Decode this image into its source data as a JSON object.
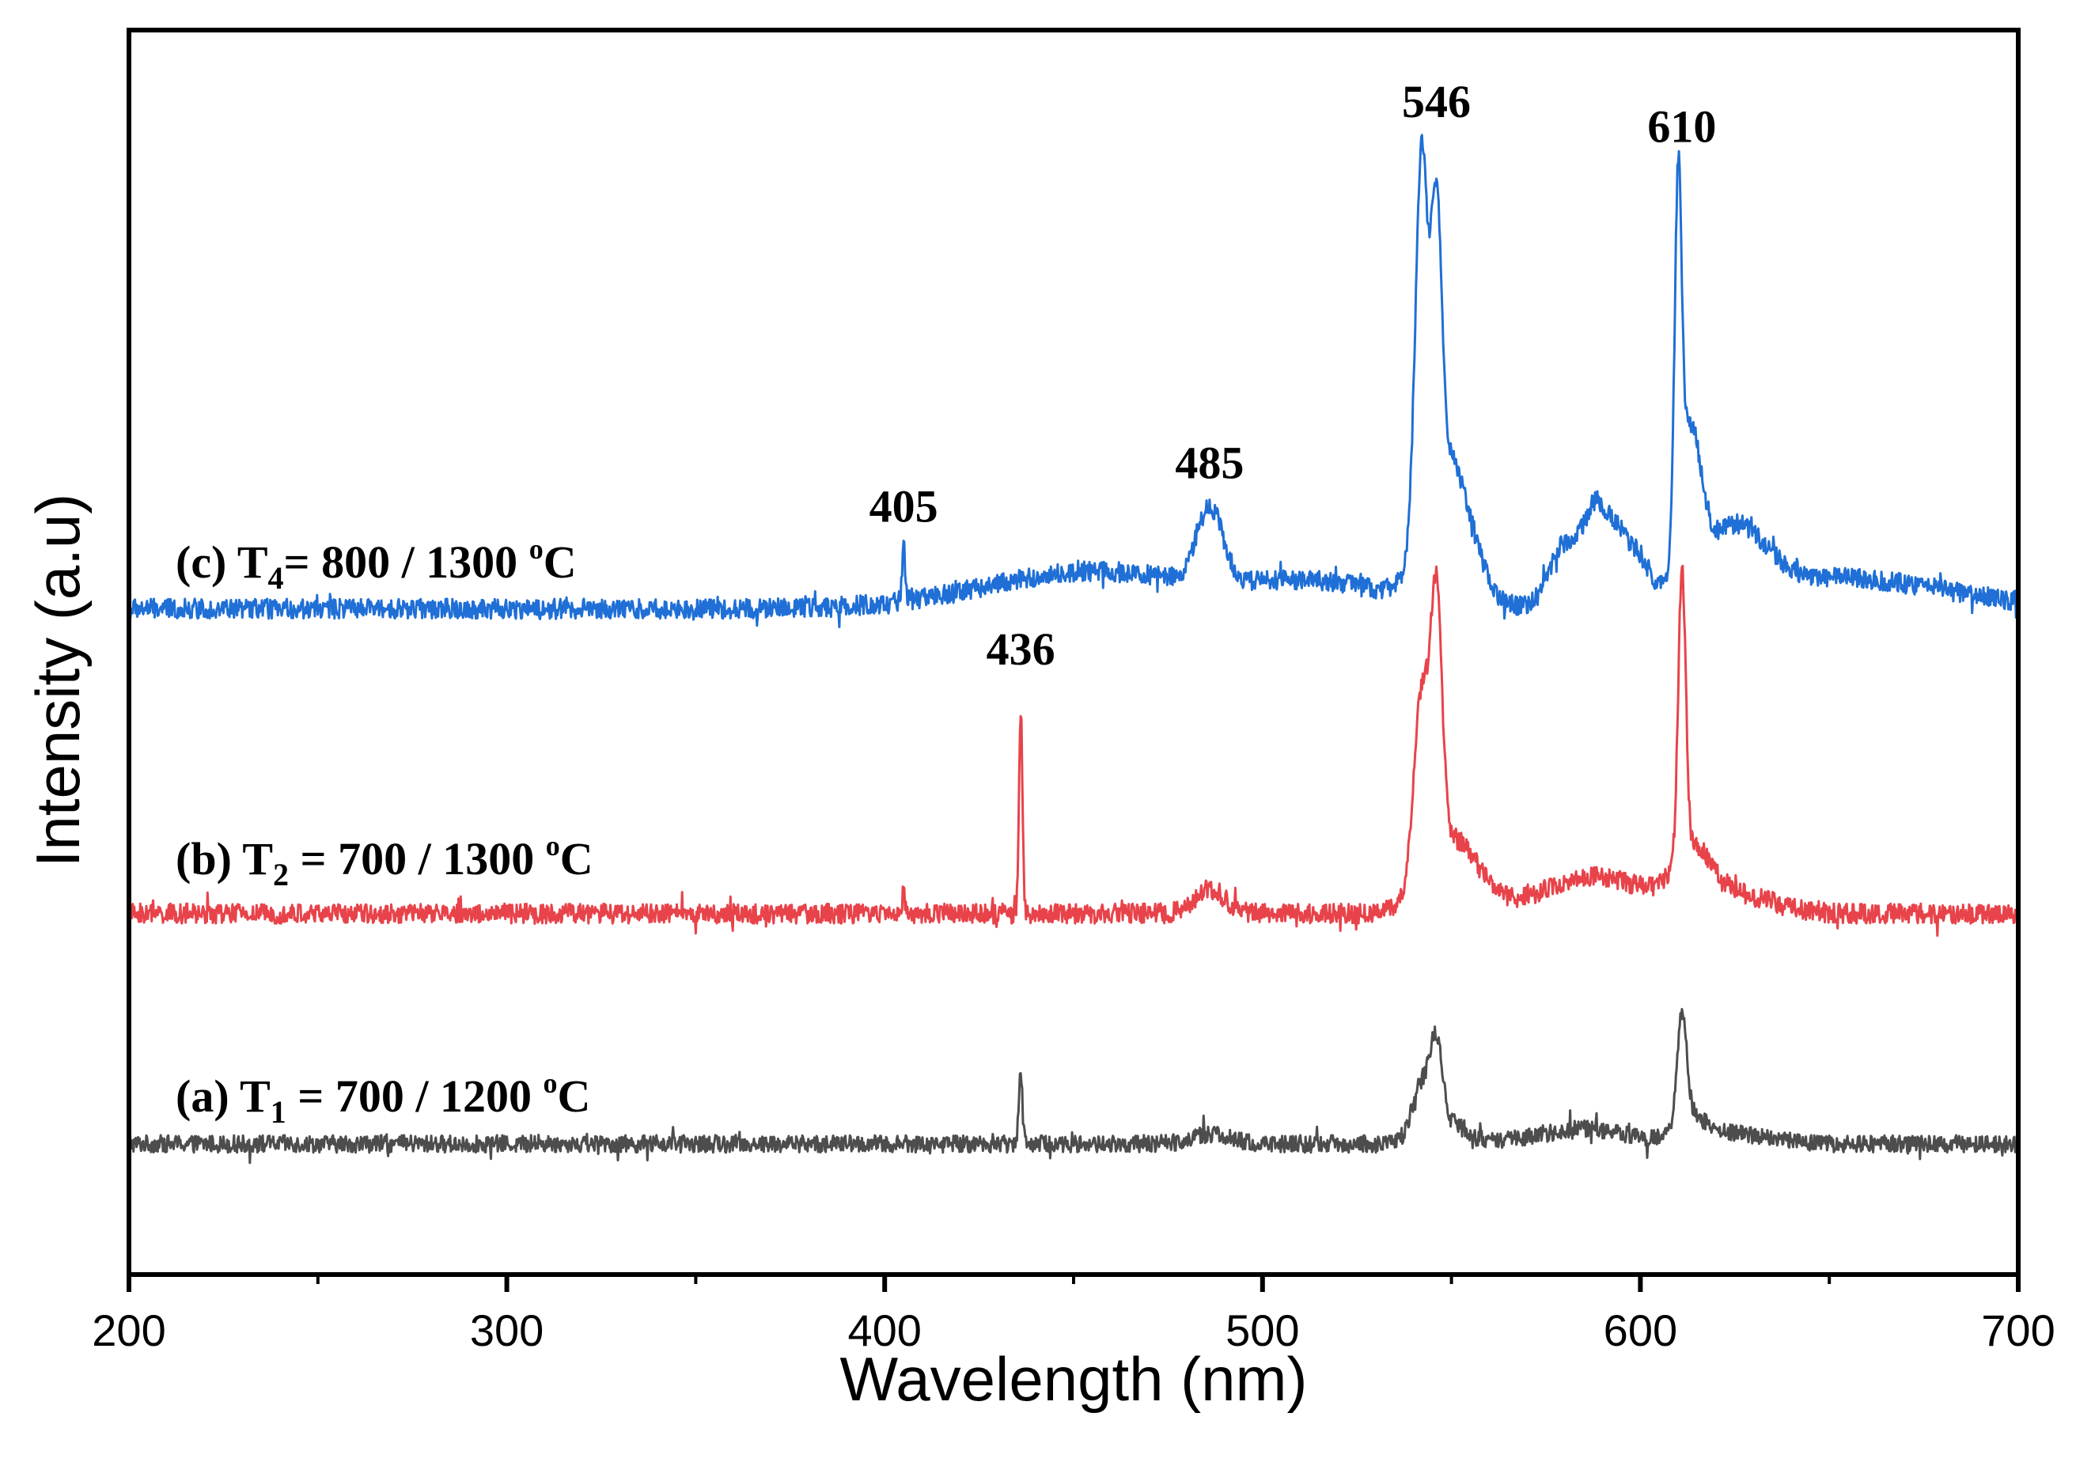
{
  "chart_data": {
    "type": "line",
    "title": "",
    "xlabel": "Wavelength (nm)",
    "ylabel": "Intensity (a.u)",
    "xlim": [
      200,
      700
    ],
    "ylim": [
      0,
      100
    ],
    "x_ticks": [
      200,
      300,
      400,
      500,
      600,
      700
    ],
    "x_tick_labels": [
      "200",
      "300",
      "400",
      "500",
      "600",
      "700"
    ],
    "y_ticks_shown": false,
    "grid": false,
    "colors": {
      "a": "#4d4d4d",
      "b": "#e8434a",
      "c": "#1f6fd6"
    },
    "series": [
      {
        "id": "a",
        "name": "(a) T1 = 700 / 1200 oC",
        "label_parts": {
          "prefix": "(a) T",
          "sub": "1",
          "mid": " = 700 / 1200 ",
          "sup": "o",
          "suffix": "C"
        },
        "baseline": 10.5,
        "noise": 0.7,
        "peaks": [
          {
            "x": 436,
            "height": 6.0,
            "width": 0.5
          },
          {
            "x": 486,
            "height": 0.8,
            "width": 5
          },
          {
            "x": 542,
            "height": 4.0,
            "width": 2.5
          },
          {
            "x": 546,
            "height": 6.0,
            "width": 1.5
          },
          {
            "x": 548,
            "height": 2.0,
            "width": 5
          },
          {
            "x": 585,
            "height": 1.2,
            "width": 12
          },
          {
            "x": 611,
            "height": 8.5,
            "width": 1.2
          },
          {
            "x": 613,
            "height": 2.0,
            "width": 4
          },
          {
            "x": 625,
            "height": 0.8,
            "width": 10
          }
        ]
      },
      {
        "id": "b",
        "name": "(b) T2 = 700 / 1300 oC",
        "label_parts": {
          "prefix": "(b) T",
          "sub": "2",
          "mid": " = 700 / 1300 ",
          "sup": "o",
          "suffix": "C"
        },
        "baseline": 29.0,
        "noise": 0.8,
        "peaks": [
          {
            "x": 405,
            "height": 1.5,
            "width": 0.5
          },
          {
            "x": 436,
            "height": 16.5,
            "width": 0.45
          },
          {
            "x": 486,
            "height": 2.0,
            "width": 4
          },
          {
            "x": 542,
            "height": 14.5,
            "width": 2.0
          },
          {
            "x": 546,
            "height": 20.0,
            "width": 1.5
          },
          {
            "x": 550,
            "height": 6.0,
            "width": 7
          },
          {
            "x": 588,
            "height": 3.0,
            "width": 14
          },
          {
            "x": 611,
            "height": 23.0,
            "width": 1.0
          },
          {
            "x": 614,
            "height": 4.0,
            "width": 5
          },
          {
            "x": 625,
            "height": 1.5,
            "width": 10
          }
        ]
      },
      {
        "id": "c",
        "name": "(c) T4= 800 / 1300 oC",
        "label_parts": {
          "prefix": "(c) T",
          "sub": "4",
          "mid": "= 800 / 1300 ",
          "sup": "o",
          "suffix": "C"
        },
        "baseline": 53.5,
        "noise": 0.8,
        "peaks": [
          {
            "x": 405,
            "height": 4.5,
            "width": 0.4
          },
          {
            "x": 455,
            "height": 3.0,
            "width": 28
          },
          {
            "x": 486,
            "height": 6.0,
            "width": 3.5
          },
          {
            "x": 515,
            "height": 2.0,
            "width": 18
          },
          {
            "x": 542,
            "height": 30.0,
            "width": 1.6
          },
          {
            "x": 546,
            "height": 22.0,
            "width": 1.4
          },
          {
            "x": 549,
            "height": 12.0,
            "width": 6
          },
          {
            "x": 580,
            "height": 5.0,
            "width": 4
          },
          {
            "x": 588,
            "height": 7.0,
            "width": 3
          },
          {
            "x": 594,
            "height": 5.0,
            "width": 3
          },
          {
            "x": 600,
            "height": 3.0,
            "width": 3
          },
          {
            "x": 610,
            "height": 27.0,
            "width": 0.9
          },
          {
            "x": 613,
            "height": 12.0,
            "width": 3
          },
          {
            "x": 625,
            "height": 5.0,
            "width": 8
          },
          {
            "x": 650,
            "height": 2.5,
            "width": 30
          }
        ]
      }
    ],
    "annotations": [
      {
        "text": "546",
        "x": 546,
        "y": 93.0
      },
      {
        "text": "610",
        "x": 611,
        "y": 91.0
      },
      {
        "text": "485",
        "x": 486,
        "y": 64.0
      },
      {
        "text": "405",
        "x": 405,
        "y": 60.5
      },
      {
        "text": "436",
        "x": 436,
        "y": 49.0
      }
    ]
  }
}
